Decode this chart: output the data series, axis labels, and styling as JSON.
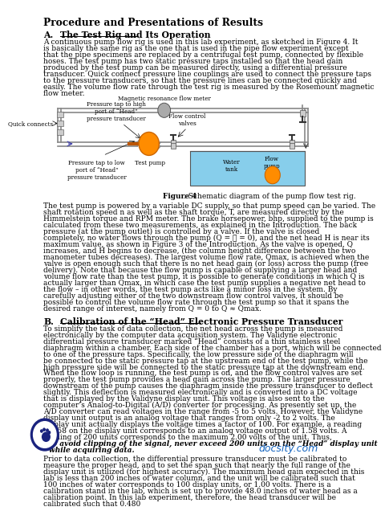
{
  "title": "Procedure and Presentations of Results",
  "section_a_label": "A.",
  "section_a_title": "The Test Rig and Its Operation",
  "section_b_label": "B.",
  "section_b_title": "Calibration of the “Head” Electronic Pressure Transducer",
  "figure_caption_bold": "Figure 4",
  "figure_caption_rest": ". Schematic diagram of the pump flow test rig.",
  "para1": "    A continuous pump flow rig is used in this lab experiment, as sketched in Figure 4. It is basically the same rig as the one that is used in the pipe flow experiment except that the pipe specimens are replaced by a centrifugal test pump, connected by flexible hoses. The test pump has two static pressure taps installed so that the head gain produced by the test pump can be measured directly, using a differential pressure transducer. Quick connect pressure line couplings are used to connect the pressure taps to the pressure transducers, so that the pressure lines can be connected quickly and easily. The volume flow rate through the test rig is measured by the Rosemount magnetic flow meter.",
  "para2": "    The test pump is powered by a variable DC supply, so that pump speed can be varied.  The shaft rotation speed  n  as well as the shaft torque, T, are measured directly by the Himmelstein torque and RPM meter.  The brake horsepower, bhp, supplied to the pump is calculated from these two measurements, as explained in the Introduction.  The back pressure (at the pump outlet) is controlled by a valve.  If the valve is closed completely, no water flows through the pump (Q = เ  = 0), and the net head H is near its maximum value, as shown in Figure 3 of the Introduction.  As the valve is opened, Q increases, and H begins to decrease, (the column height difference between the two manometer tubes decreases).  The largest volume flow rate, Qmax, is achieved when the valve is open enough such that there is no net head gain (or loss) across the pump (free delivery).  Note that because the flow pump is capable of supplying a larger head and volume flow rate than the test pump, it is possible to generate conditions in which Q is actually larger than Qmax, in which case the test pump supplies a negative net head to the flow – in other words, the test pump acts like a minor loss in the system. By carefully adjusting either of the two downstream flow control valves, it should be possible to control the volume flow rate through the test pump so that it spans the desired range of interest, namely from Q = 0 to Q ≈ Qmax.",
  "para3a": "    To simplify the task of data collection, the net head across the pump is measured electronically by the computer data acquisition system. The Validyne electronic differential pressure transducer marked “Head” consists of a thin stainless steel diaphragm within a chamber. Each side of the chamber has a port, which will be connected to one of the pressure taps. Specifically, the low pressure side of the diaphragm will be connected to the static pressure tap at the upstream end of the test pump, while the high pressure side will be connected to the static pressure tap at the downstream end. When the flow loop is running, the test pump is on, and the flow control valves are set properly, the test pump provides a head gain across the pump. The larger pressure downstream of the pump causes the diaphragm inside the pressure transducer to deflect slightly. This deflection is measured electronically and is converted into a DC voltage that is displayed by the Validyne display unit. This voltage is also sent to the computer’s Analog-to-Digital (A/D) converter for processing. As presently set up, the A/D converter can read voltages in the range from -5 to 5 volts. However, the Validyne display unit output is an analog voltage that ranges from only -2 to 2 volts. The display unit actually displays the voltage times a factor of 100. For example, a reading of 158 on the display unit corresponds to an analog voltage output of 1.58 volts. A reading of 200 units corresponds to the maximum 2.00 volts of the unit. Thus,",
  "para3b": "to avoid clipping of the signal, never exceed 200 units on the “Head” display unit while acquiring data.",
  "para4": "    Prior to data collection, the differential pressure transducer must be calibrated to measure the proper head, and to set the span such that nearly the full range of the display unit is utilized (for highest accuracy). The maximum head gain expected in this lab is less than 200 inches of water column, and the unit will be calibrated such that 100 inches of water corresponds to 100 display units, or 1.00 volts. There is a calibration stand in the lab, which is set up to provide 48.0 inches of water head as a calibration point. In this lab experiment, therefore, the head transducer will be calibrated such that 0.480",
  "bg_color": "#ffffff",
  "text_color": "#000000",
  "docsity_color": "#1565C0",
  "docsity_text": "docsity.com",
  "pipe_color": "#888888",
  "pump_color": "#FF8C00",
  "tank_color": "#87CEEB",
  "mfm_color": "#AAAAAA",
  "qc_color": "#CCCCCC",
  "arrow_color": "#4444AA"
}
